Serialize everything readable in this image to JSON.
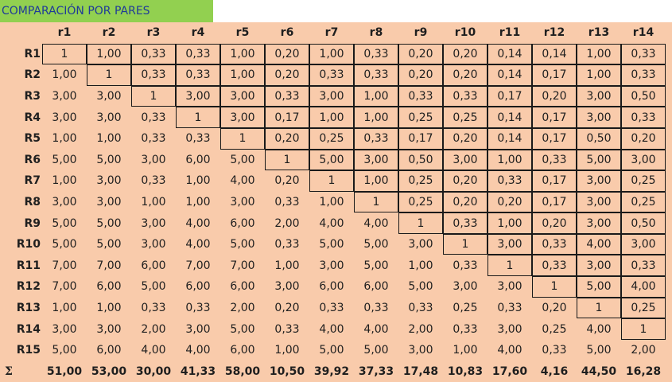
{
  "title": "COMPARACIÓN POR PARES",
  "columns": [
    "r1",
    "r2",
    "r3",
    "r4",
    "r5",
    "r6",
    "r7",
    "r8",
    "r9",
    "r10",
    "r11",
    "r12",
    "r13",
    "r14"
  ],
  "rows": [
    {
      "label": "R1",
      "values": [
        "1",
        "1,00",
        "0,33",
        "0,33",
        "1,00",
        "0,20",
        "1,00",
        "0,33",
        "0,20",
        "0,20",
        "0,14",
        "0,14",
        "1,00",
        "0,33"
      ]
    },
    {
      "label": "R2",
      "values": [
        "1,00",
        "1",
        "0,33",
        "0,33",
        "1,00",
        "0,20",
        "0,33",
        "0,33",
        "0,20",
        "0,20",
        "0,14",
        "0,17",
        "1,00",
        "0,33"
      ]
    },
    {
      "label": "R3",
      "values": [
        "3,00",
        "3,00",
        "1",
        "3,00",
        "3,00",
        "0,33",
        "3,00",
        "1,00",
        "0,33",
        "0,33",
        "0,17",
        "0,20",
        "3,00",
        "0,50"
      ]
    },
    {
      "label": "R4",
      "values": [
        "3,00",
        "3,00",
        "0,33",
        "1",
        "3,00",
        "0,17",
        "1,00",
        "1,00",
        "0,25",
        "0,25",
        "0,14",
        "0,17",
        "3,00",
        "0,33"
      ]
    },
    {
      "label": "R5",
      "values": [
        "1,00",
        "1,00",
        "0,33",
        "0,33",
        "1",
        "0,20",
        "0,25",
        "0,33",
        "0,17",
        "0,20",
        "0,14",
        "0,17",
        "0,50",
        "0,20"
      ]
    },
    {
      "label": "R6",
      "values": [
        "5,00",
        "5,00",
        "3,00",
        "6,00",
        "5,00",
        "1",
        "5,00",
        "3,00",
        "0,50",
        "3,00",
        "1,00",
        "0,33",
        "5,00",
        "3,00"
      ]
    },
    {
      "label": "R7",
      "values": [
        "1,00",
        "3,00",
        "0,33",
        "1,00",
        "4,00",
        "0,20",
        "1",
        "1,00",
        "0,25",
        "0,20",
        "0,33",
        "0,17",
        "3,00",
        "0,25"
      ]
    },
    {
      "label": "R8",
      "values": [
        "3,00",
        "3,00",
        "1,00",
        "1,00",
        "3,00",
        "0,33",
        "1,00",
        "1",
        "0,25",
        "0,20",
        "0,20",
        "0,17",
        "3,00",
        "0,25"
      ]
    },
    {
      "label": "R9",
      "values": [
        "5,00",
        "5,00",
        "3,00",
        "4,00",
        "6,00",
        "2,00",
        "4,00",
        "4,00",
        "1",
        "0,33",
        "1,00",
        "0,20",
        "3,00",
        "0,50"
      ]
    },
    {
      "label": "R10",
      "values": [
        "5,00",
        "5,00",
        "3,00",
        "4,00",
        "5,00",
        "0,33",
        "5,00",
        "5,00",
        "3,00",
        "1",
        "3,00",
        "0,33",
        "4,00",
        "3,00"
      ]
    },
    {
      "label": "R11",
      "values": [
        "7,00",
        "7,00",
        "6,00",
        "7,00",
        "7,00",
        "1,00",
        "3,00",
        "5,00",
        "1,00",
        "0,33",
        "1",
        "0,33",
        "3,00",
        "0,33"
      ]
    },
    {
      "label": "R12",
      "values": [
        "7,00",
        "6,00",
        "5,00",
        "6,00",
        "6,00",
        "3,00",
        "6,00",
        "6,00",
        "5,00",
        "3,00",
        "3,00",
        "1",
        "5,00",
        "4,00"
      ]
    },
    {
      "label": "R13",
      "values": [
        "1,00",
        "1,00",
        "0,33",
        "0,33",
        "2,00",
        "0,20",
        "0,33",
        "0,33",
        "0,33",
        "0,25",
        "0,33",
        "0,20",
        "1",
        "0,25"
      ]
    },
    {
      "label": "R14",
      "values": [
        "3,00",
        "3,00",
        "2,00",
        "3,00",
        "5,00",
        "0,33",
        "4,00",
        "4,00",
        "2,00",
        "0,33",
        "3,00",
        "0,25",
        "4,00",
        "1"
      ]
    },
    {
      "label": "R15",
      "values": [
        "5,00",
        "6,00",
        "4,00",
        "4,00",
        "6,00",
        "1,00",
        "5,00",
        "5,00",
        "3,00",
        "1,00",
        "4,00",
        "0,33",
        "5,00",
        "2,00"
      ]
    }
  ],
  "totals": {
    "label": "Σ",
    "values": [
      "51,00",
      "53,00",
      "30,00",
      "41,33",
      "58,00",
      "10,50",
      "39,92",
      "37,33",
      "17,48",
      "10,83",
      "17,60",
      "4,16",
      "44,50",
      "16,28"
    ]
  },
  "colors": {
    "title_bg": "#92d050",
    "title_text": "#1f3a99",
    "table_bg": "#f9cbab",
    "border": "#1a1a1a"
  }
}
